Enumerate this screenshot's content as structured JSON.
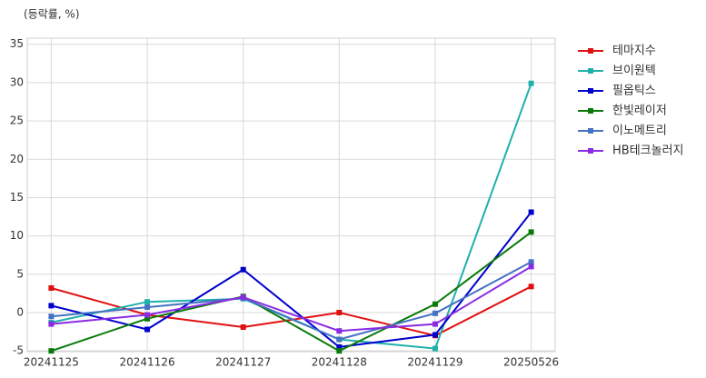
{
  "chart_data": {
    "type": "line",
    "unit_label": "(등락률, %)",
    "categories": [
      "20241125",
      "20241126",
      "20241127",
      "20241128",
      "20241129",
      "20250526"
    ],
    "series": [
      {
        "name": "테마지수",
        "color": "#e01010",
        "values": [
          3.2,
          -0.3,
          -1.9,
          0.0,
          -3.0,
          3.4
        ]
      },
      {
        "name": "브이원텍",
        "color": "#20b0aa",
        "values": [
          -1.3,
          1.4,
          1.8,
          -3.5,
          -4.7,
          29.9
        ]
      },
      {
        "name": "필옵틱스",
        "color": "#0000cc",
        "values": [
          0.9,
          -2.2,
          5.6,
          -4.5,
          -2.9,
          13.1
        ]
      },
      {
        "name": "한빛레이저",
        "color": "#087a08",
        "values": [
          -5.0,
          -0.8,
          2.1,
          -5.0,
          1.1,
          10.5
        ]
      },
      {
        "name": "이노메트리",
        "color": "#4472c4",
        "values": [
          -0.5,
          0.7,
          1.9,
          -3.5,
          -0.1,
          6.6
        ]
      },
      {
        "name": "HB테크놀러지",
        "color": "#8a2be2",
        "values": [
          -1.5,
          -0.3,
          2.0,
          -2.4,
          -1.5,
          6.0
        ]
      }
    ],
    "ylim": [
      -5.1,
      35.8
    ],
    "yticks": [
      -5,
      0,
      5,
      10,
      15,
      20,
      25,
      30,
      35
    ],
    "grid": true,
    "legend": "right"
  }
}
